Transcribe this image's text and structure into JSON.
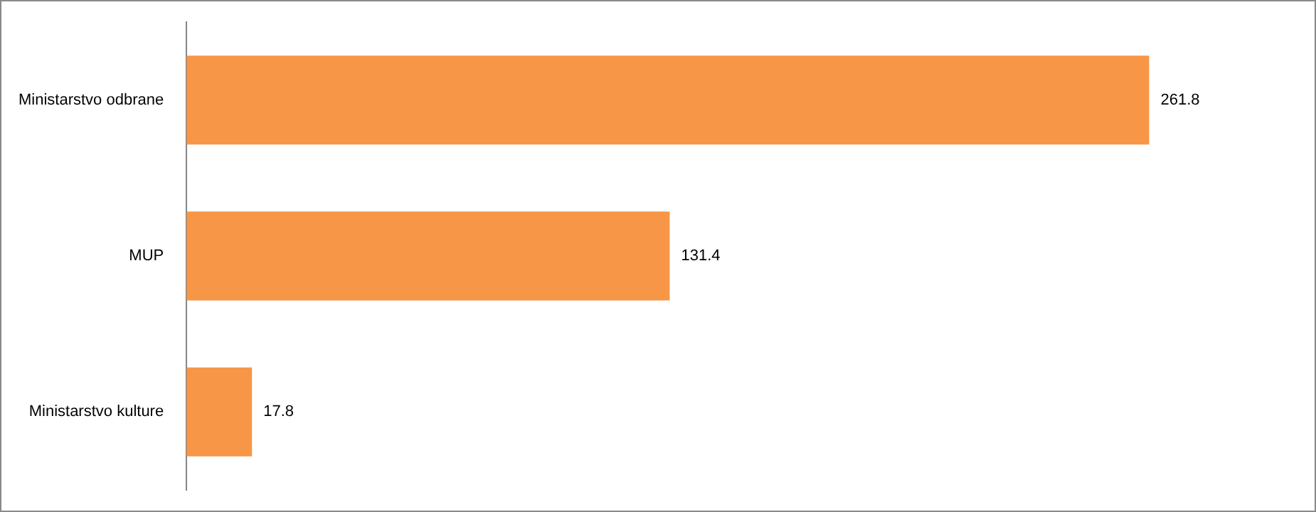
{
  "chart_data": {
    "type": "bar",
    "orientation": "horizontal",
    "categories": [
      "Ministarstvo odbrane",
      "MUP",
      "Ministarstvo kulture"
    ],
    "values": [
      261.8,
      131.4,
      17.8
    ],
    "color": "#f79646",
    "data_labels": true,
    "legend": false
  }
}
